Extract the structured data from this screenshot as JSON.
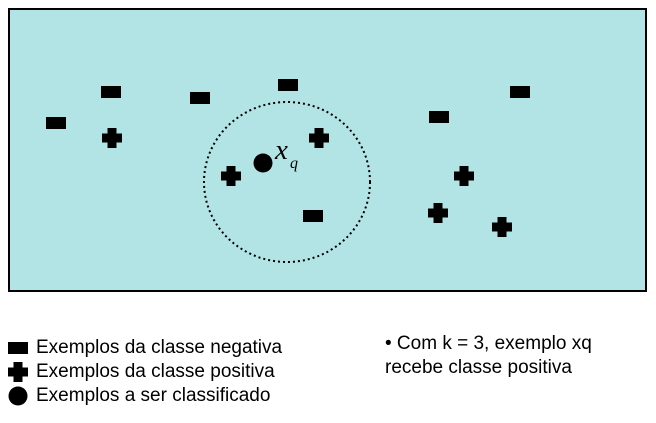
{
  "query_label": "x",
  "query_subscript": "q",
  "legend": {
    "negative": "Exemplos da classe negativa",
    "positive": "Exemplos da classe positiva",
    "query": "Exemplos a ser classificado"
  },
  "note": {
    "line1": "• Com k = 3, exemplo xq",
    "line2": "recebe classe positiva"
  },
  "colors": {
    "panel_bg": "#b2e3e5",
    "panel_border": "#000000",
    "marker": "#000000"
  },
  "icons": {
    "negative": "filled-rectangle",
    "positive": "filled-plus",
    "query": "filled-circle",
    "neighborhood": "dotted-circle"
  }
}
